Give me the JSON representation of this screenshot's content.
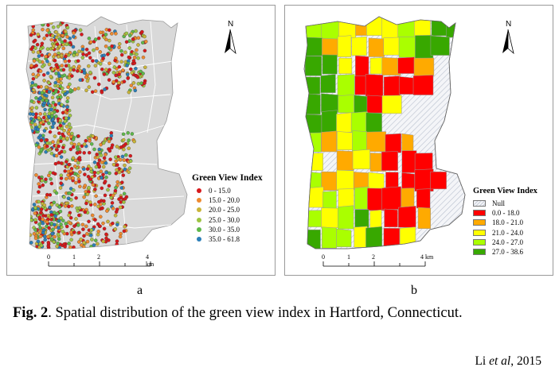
{
  "colors": {
    "background_polygon": "#d9d9d9",
    "boundary": "#9a9a9a",
    "null_hatch": "#c9ced9"
  },
  "panel_a": {
    "label": "a",
    "north": "N",
    "legend": {
      "title": "Green View Index",
      "items": [
        {
          "label": "0 - 15.0",
          "color": "#d7191c"
        },
        {
          "label": "15.0 - 20.0",
          "color": "#ee8a2f"
        },
        {
          "label": "20.0 - 25.0",
          "color": "#c9b53a"
        },
        {
          "label": "25.0 - 30.0",
          "color": "#9dc443"
        },
        {
          "label": "30.0 - 35.0",
          "color": "#5fb84a"
        },
        {
          "label": "35.0 - 61.8",
          "color": "#2c7fb8"
        }
      ]
    },
    "scale": {
      "ticks": [
        "0",
        "1",
        "2",
        "4 km"
      ]
    }
  },
  "panel_b": {
    "label": "b",
    "north": "N",
    "legend": {
      "title": "Green View Index",
      "items": [
        {
          "label": "Null",
          "color": "null-hatch"
        },
        {
          "label": "0.0 - 18.0",
          "color": "#ff0000"
        },
        {
          "label": "18.0 - 21.0",
          "color": "#ffaa00"
        },
        {
          "label": "21.0 - 24.0",
          "color": "#ffff00"
        },
        {
          "label": "24.0 - 27.0",
          "color": "#aaff00"
        },
        {
          "label": "27.0 - 38.6",
          "color": "#38a800"
        }
      ]
    },
    "scale": {
      "ticks": [
        "0",
        "1",
        "2",
        "4 km"
      ]
    }
  },
  "caption": {
    "label": "Fig. 2",
    "text": ". Spatial distribution of the green view index in Hartford, Connecticut."
  },
  "citation": {
    "author": "Li ",
    "etal": "et al",
    "year": ", 2015"
  }
}
